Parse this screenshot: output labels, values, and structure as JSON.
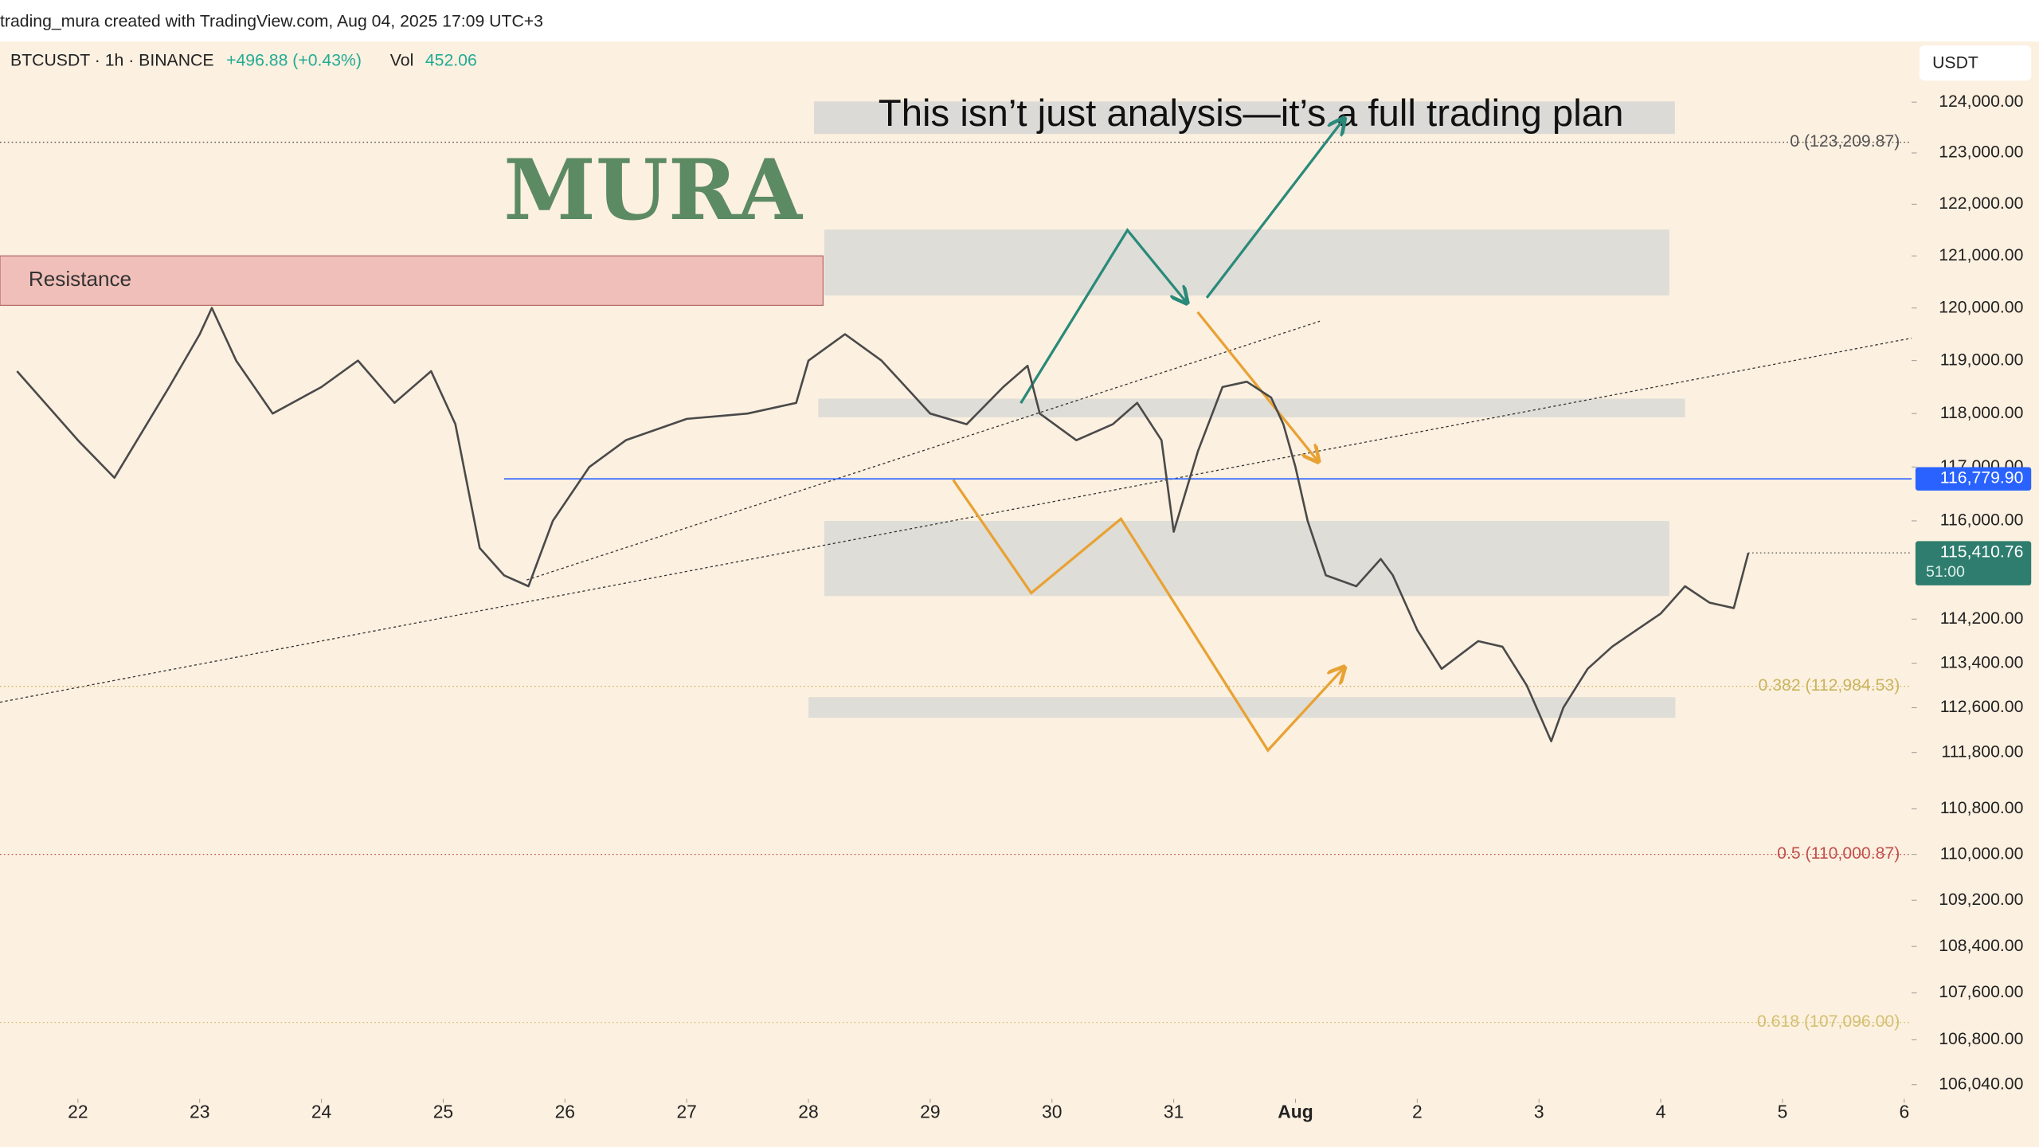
{
  "header": {
    "text": "trading_mura created with TradingView.com, Aug 04, 2025 17:09 UTC+3"
  },
  "chart_data": {
    "type": "line",
    "symbol": "BTCUSDT · 1h · BINANCE",
    "change": "+496.88 (+0.43%)",
    "volume_label": "Vol",
    "volume": 452.06,
    "currency": "USDT",
    "watermark": "MURA",
    "annotation": "This isn’t just analysis—it’s a full trading plan",
    "color": "#4a4a4a",
    "x": [
      -0.5,
      0,
      0.3,
      0.75,
      1.0,
      1.1,
      1.3,
      1.6,
      2.0,
      2.3,
      2.6,
      2.9,
      3.1,
      3.3,
      3.5,
      3.7,
      3.9,
      4.2,
      4.5,
      5.0,
      5.5,
      5.9,
      6.0,
      6.3,
      6.6,
      6.8,
      7.0,
      7.3,
      7.6,
      7.8,
      7.9,
      8.2,
      8.5,
      8.7,
      8.9,
      9.0,
      9.2,
      9.4,
      9.6,
      9.8,
      9.9,
      10.0,
      10.1,
      10.25,
      10.5,
      10.7,
      10.8,
      11.0,
      11.2,
      11.5,
      11.7,
      11.9,
      12.0,
      12.1,
      12.2,
      12.4,
      12.6,
      12.8,
      13.0,
      13.2,
      13.4,
      13.6,
      13.72
    ],
    "values": [
      118800,
      117500,
      116800,
      118500,
      119500,
      120000,
      119000,
      118000,
      118500,
      119000,
      118200,
      118800,
      117800,
      115500,
      115000,
      114800,
      116000,
      117000,
      117500,
      117900,
      118000,
      118200,
      119000,
      119500,
      119000,
      118500,
      118000,
      117800,
      118500,
      118900,
      118000,
      117500,
      117800,
      118200,
      117500,
      115800,
      117300,
      118500,
      118600,
      118300,
      117800,
      117000,
      116000,
      115000,
      114800,
      115300,
      115000,
      114000,
      113300,
      113800,
      113700,
      113000,
      112500,
      112000,
      112600,
      113300,
      113700,
      114000,
      114300,
      114800,
      114500,
      114400,
      115410.76
    ],
    "xlim": [
      -0.64,
      15.06
    ],
    "xticks": [
      {
        "value": 0,
        "label": "22"
      },
      {
        "value": 1,
        "label": "23"
      },
      {
        "value": 2,
        "label": "24"
      },
      {
        "value": 3,
        "label": "25"
      },
      {
        "value": 4,
        "label": "26"
      },
      {
        "value": 5,
        "label": "27"
      },
      {
        "value": 6,
        "label": "28"
      },
      {
        "value": 7,
        "label": "29"
      },
      {
        "value": 8,
        "label": "30"
      },
      {
        "value": 9,
        "label": "31"
      },
      {
        "value": 10,
        "label": "Aug"
      },
      {
        "value": 11,
        "label": "2"
      },
      {
        "value": 12,
        "label": "3"
      },
      {
        "value": 13,
        "label": "4"
      },
      {
        "value": 14,
        "label": "5"
      },
      {
        "value": 15,
        "label": "6"
      }
    ],
    "ylim": [
      105800,
      125200
    ],
    "log_scale": true,
    "yticks": [
      {
        "value": 124000,
        "label": "124,000.00"
      },
      {
        "value": 123000,
        "label": "123,000.00"
      },
      {
        "value": 122000,
        "label": "122,000.00"
      },
      {
        "value": 121000,
        "label": "121,000.00"
      },
      {
        "value": 120000,
        "label": "120,000.00"
      },
      {
        "value": 119000,
        "label": "119,000.00"
      },
      {
        "value": 118000,
        "label": "118,000.00"
      },
      {
        "value": 117000,
        "label": "117,000.00"
      },
      {
        "value": 116000,
        "label": "116,000.00"
      },
      {
        "value": 114200,
        "label": "114,200.00"
      },
      {
        "value": 113400,
        "label": "113,400.00"
      },
      {
        "value": 112600,
        "label": "112,600.00"
      },
      {
        "value": 111800,
        "label": "111,800.00"
      },
      {
        "value": 110800,
        "label": "110,800.00"
      },
      {
        "value": 110000,
        "label": "110,000.00"
      },
      {
        "value": 109200,
        "label": "109,200.00"
      },
      {
        "value": 108400,
        "label": "108,400.00"
      },
      {
        "value": 107600,
        "label": "107,600.00"
      },
      {
        "value": 106800,
        "label": "106,800.00"
      },
      {
        "value": 106040,
        "label": "106,040.00"
      }
    ],
    "zones": [
      {
        "label": "Resistance",
        "x": [
          -0.64,
          6.12
        ],
        "y": [
          120050,
          121000
        ],
        "color": "#f0bab5"
      },
      {
        "x": [
          6.13,
          13.07
        ],
        "y": [
          120240,
          121510
        ],
        "color": "#dcdad6"
      },
      {
        "x": [
          6.08,
          13.2
        ],
        "y": [
          117930,
          118280
        ],
        "color": "#dcdad6"
      },
      {
        "x": [
          6.13,
          13.07
        ],
        "y": [
          114620,
          116000
        ],
        "color": "#dcdad6"
      },
      {
        "x": [
          6.0,
          13.12
        ],
        "y": [
          112420,
          112790
        ],
        "color": "#dcdad6"
      }
    ],
    "fib_levels": [
      {
        "value": 123209.87,
        "label": "0 (123,209.87)",
        "color": "#555555"
      },
      {
        "value": 112984.53,
        "label": "0.382 (112,984.53)",
        "color": "#c9b45c"
      },
      {
        "value": 110000.87,
        "label": "0.5 (110,000.87)",
        "color": "#c0504d"
      },
      {
        "value": 107096.0,
        "label": "0.618 (107,096.00)",
        "color": "#d4c070"
      }
    ],
    "horizontal_line": {
      "value": 116779.9,
      "label": "116,779.90",
      "color": "#2962ff"
    },
    "last_price": {
      "value": 115410.76,
      "label": "115,410.76",
      "countdown": "51:00",
      "color": "#2e7d6e"
    }
  }
}
